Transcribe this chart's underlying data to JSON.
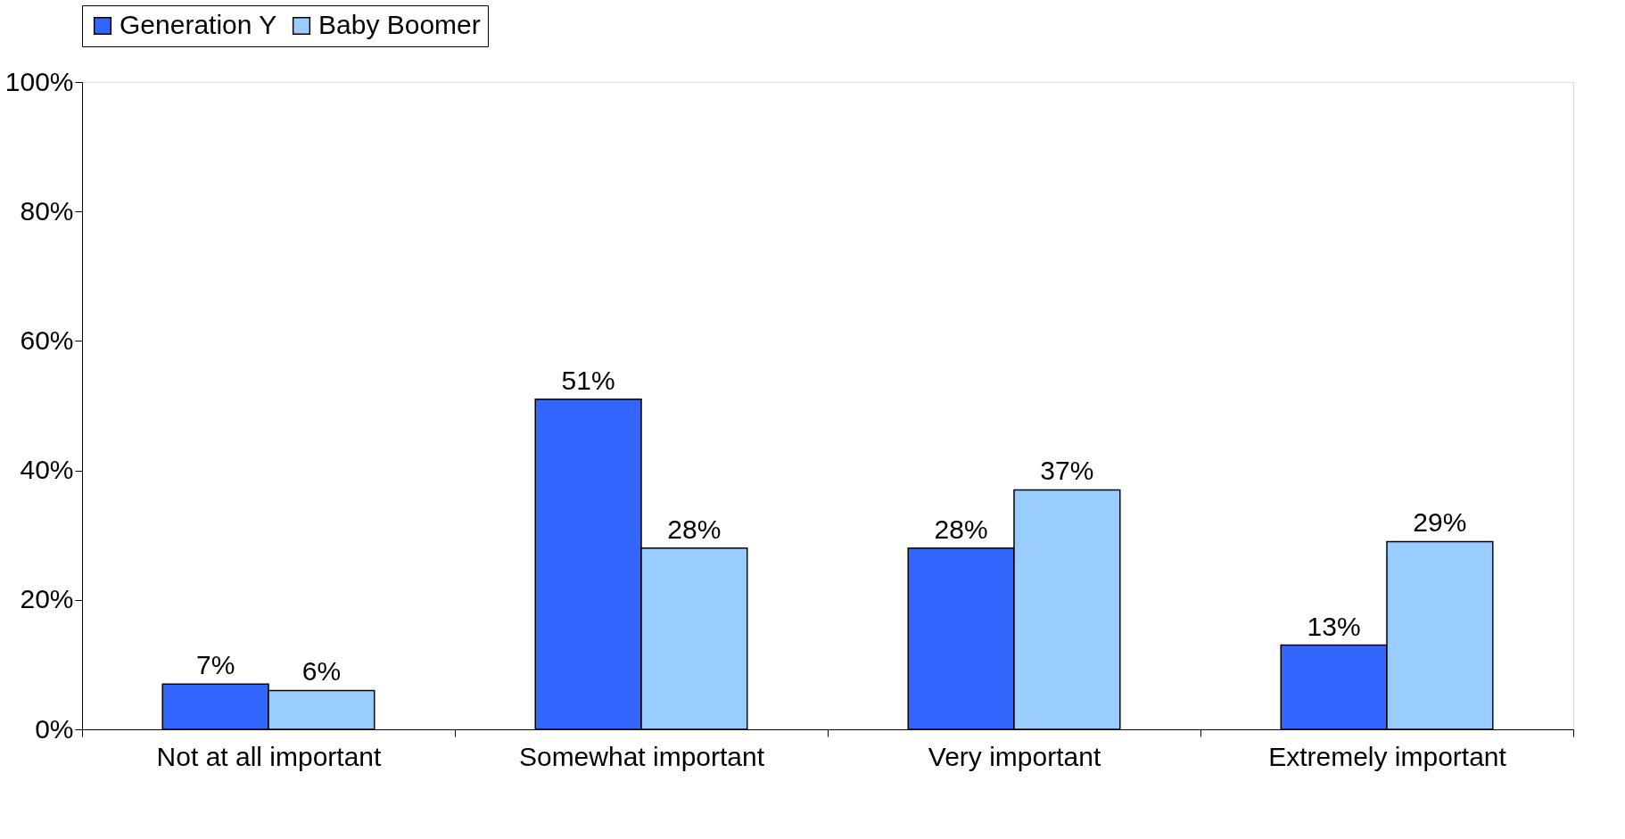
{
  "chart_data": {
    "type": "bar",
    "categories": [
      "Not at all important",
      "Somewhat important",
      "Very important",
      "Extremely important"
    ],
    "series": [
      {
        "name": "Generation Y",
        "color": "#3366ff",
        "values": [
          7,
          51,
          28,
          13
        ],
        "value_labels": [
          "7%",
          "51%",
          "28%",
          "13%"
        ]
      },
      {
        "name": "Baby Boomer",
        "color": "#99ccff",
        "values": [
          6,
          28,
          37,
          29
        ],
        "value_labels": [
          "6%",
          "28%",
          "37%",
          "29%"
        ]
      }
    ],
    "ylim": [
      0,
      100
    ],
    "yticks": [
      {
        "value": 0,
        "label": "0%"
      },
      {
        "value": 20,
        "label": "20%"
      },
      {
        "value": 40,
        "label": "40%"
      },
      {
        "value": 60,
        "label": "60%"
      },
      {
        "value": 80,
        "label": "80%"
      },
      {
        "value": 100,
        "label": "100%"
      }
    ],
    "grid": false,
    "legend": "top"
  }
}
